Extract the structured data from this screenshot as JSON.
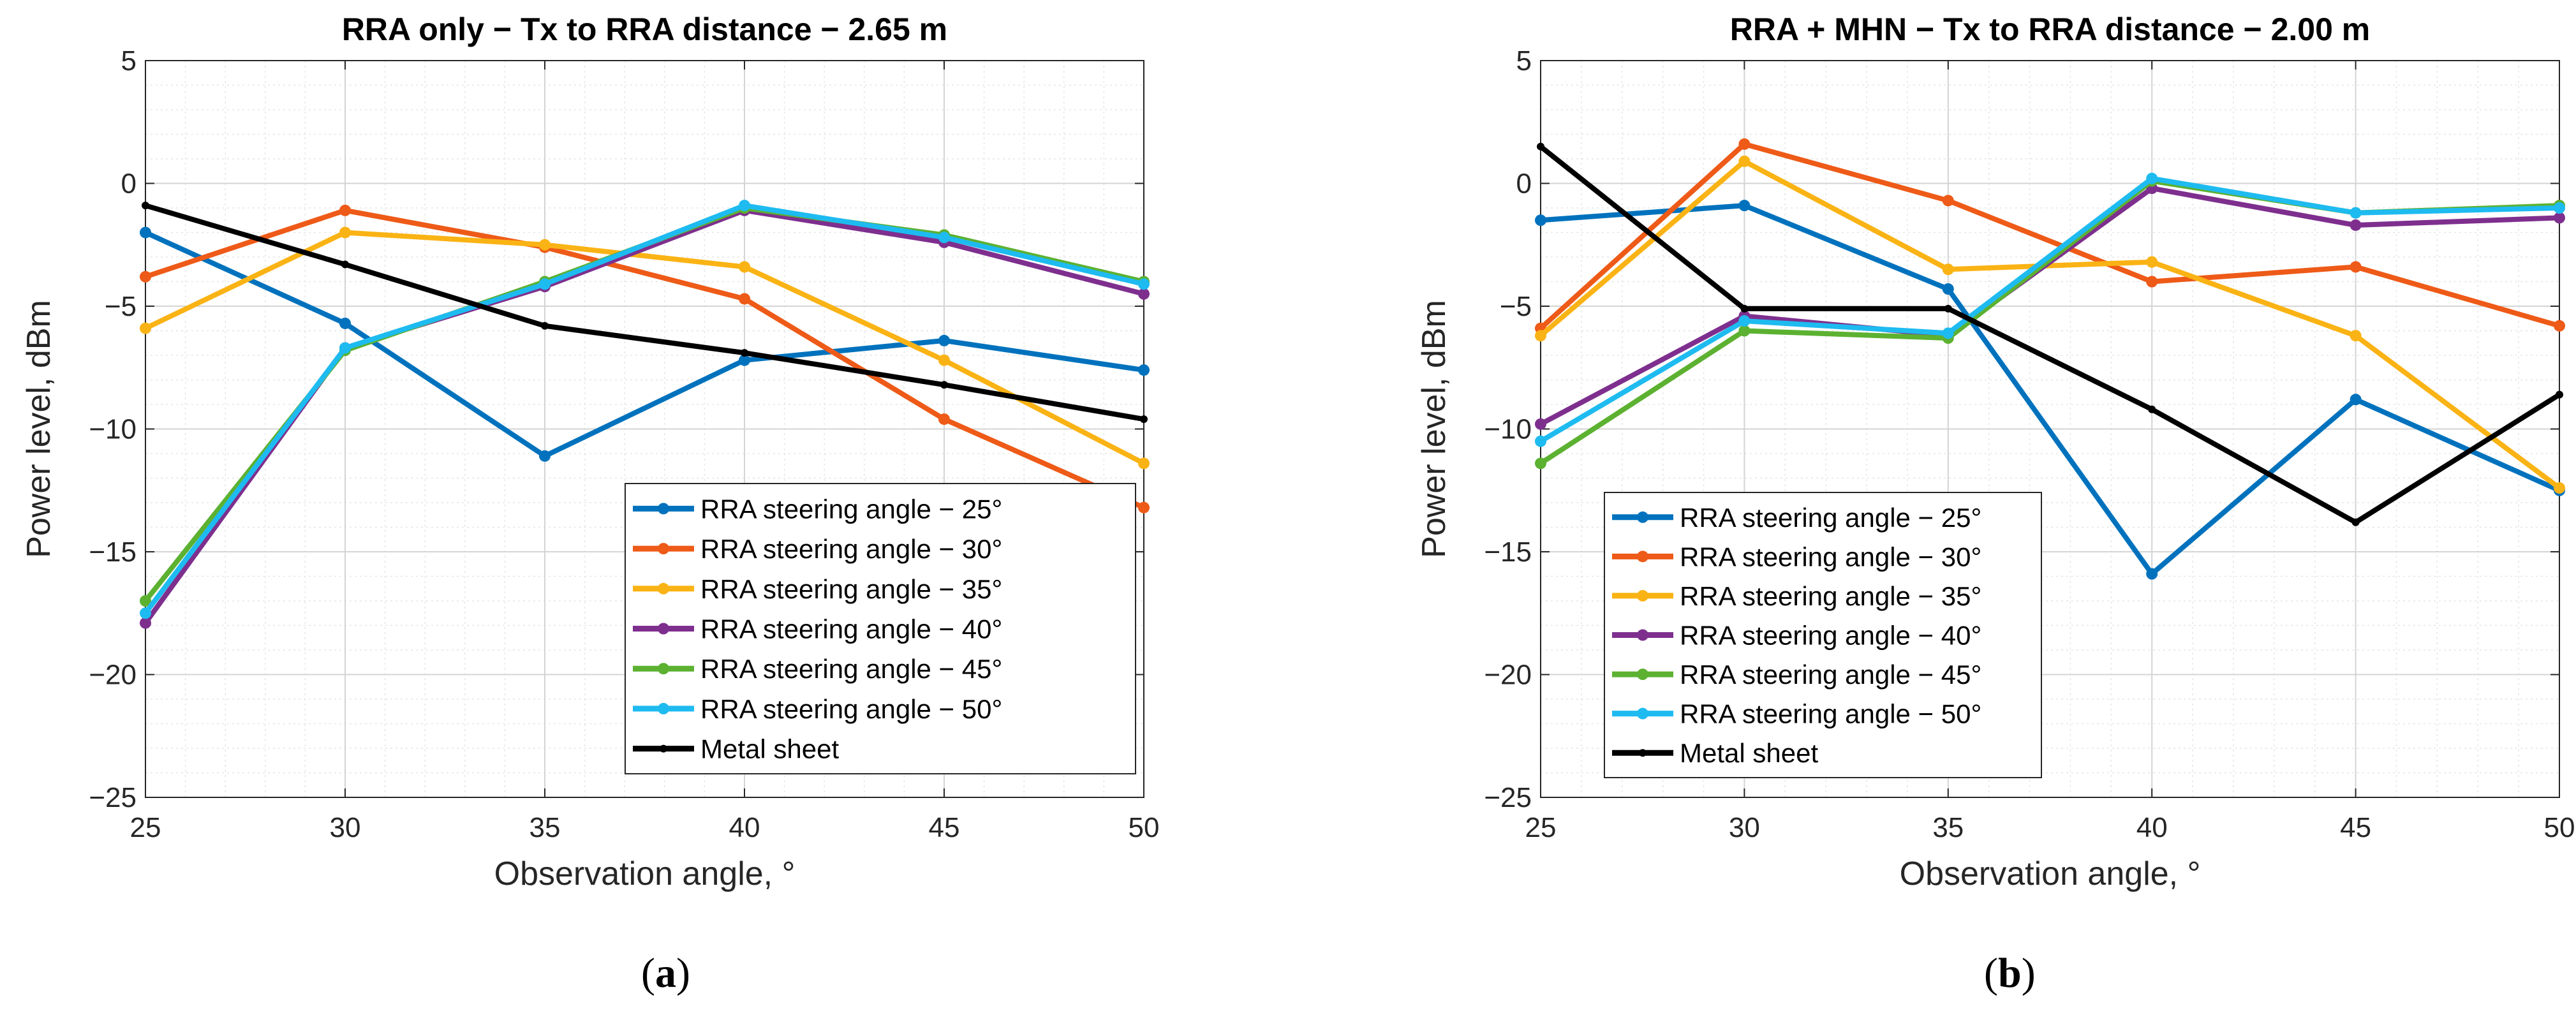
{
  "chart_data": [
    {
      "type": "line",
      "panel_label": "a",
      "title": "RRA only − Tx to RRA distance − 2.65 m",
      "xlabel": "Observation angle, °",
      "ylabel": "Power level, dBm",
      "xlim": [
        25,
        50
      ],
      "ylim": [
        -25,
        5
      ],
      "xticks": [
        "25",
        "30",
        "35",
        "40",
        "45",
        "50"
      ],
      "yticks": [
        "5",
        "0",
        "−5",
        "−10",
        "−15",
        "−20",
        "−25"
      ],
      "grid": true,
      "legend_position": "bottom-right",
      "x": [
        25,
        30,
        35,
        40,
        45,
        50
      ],
      "series": [
        {
          "name": "RRA steering angle − 25°",
          "color": "#0072BD",
          "values": [
            -2.0,
            -5.7,
            -11.1,
            -7.2,
            -6.4,
            -7.6
          ]
        },
        {
          "name": "RRA steering angle − 30°",
          "color": "#EE5A17",
          "values": [
            -3.8,
            -1.1,
            -2.6,
            -4.7,
            -9.6,
            -13.2
          ]
        },
        {
          "name": "RRA steering angle − 35°",
          "color": "#FAB314",
          "values": [
            -5.9,
            -2.0,
            -2.5,
            -3.4,
            -7.2,
            -11.4
          ]
        },
        {
          "name": "RRA steering angle − 40°",
          "color": "#7E2F8E",
          "values": [
            -17.9,
            -6.7,
            -4.2,
            -1.1,
            -2.4,
            -4.5
          ]
        },
        {
          "name": "RRA steering angle − 45°",
          "color": "#5CB131",
          "values": [
            -17.0,
            -6.8,
            -4.0,
            -1.0,
            -2.1,
            -4.0
          ]
        },
        {
          "name": "RRA steering angle − 50°",
          "color": "#1EBBF0",
          "values": [
            -17.5,
            -6.7,
            -4.1,
            -0.9,
            -2.2,
            -4.1
          ]
        },
        {
          "name": "Metal sheet",
          "color": "#000000",
          "values": [
            -0.9,
            -3.3,
            -5.8,
            -6.9,
            -8.2,
            -9.6
          ]
        }
      ]
    },
    {
      "type": "line",
      "panel_label": "b",
      "title": "RRA + MHN − Tx to RRA distance − 2.00 m",
      "xlabel": "Observation angle, °",
      "ylabel": "Power level, dBm",
      "xlim": [
        25,
        50
      ],
      "ylim": [
        -25,
        5
      ],
      "xticks": [
        "25",
        "30",
        "35",
        "40",
        "45",
        "50"
      ],
      "yticks": [
        "5",
        "0",
        "−5",
        "−10",
        "−15",
        "−20",
        "−25"
      ],
      "grid": true,
      "legend_position": "bottom-left",
      "x": [
        25,
        30,
        35,
        40,
        45,
        50
      ],
      "series": [
        {
          "name": "RRA steering angle − 25°",
          "color": "#0072BD",
          "values": [
            -1.5,
            -0.9,
            -4.3,
            -15.9,
            -8.8,
            -12.5
          ]
        },
        {
          "name": "RRA steering angle − 30°",
          "color": "#EE5A17",
          "values": [
            -5.9,
            1.6,
            -0.7,
            -4.0,
            -3.4,
            -5.8
          ]
        },
        {
          "name": "RRA steering angle − 35°",
          "color": "#FAB314",
          "values": [
            -6.2,
            0.9,
            -3.5,
            -3.2,
            -6.2,
            -12.4
          ]
        },
        {
          "name": "RRA steering angle − 40°",
          "color": "#7E2F8E",
          "values": [
            -9.8,
            -5.4,
            -6.2,
            -0.2,
            -1.7,
            -1.4
          ]
        },
        {
          "name": "RRA steering angle − 45°",
          "color": "#5CB131",
          "values": [
            -11.4,
            -6.0,
            -6.3,
            0.1,
            -1.2,
            -0.9
          ]
        },
        {
          "name": "RRA steering angle − 50°",
          "color": "#1EBBF0",
          "values": [
            -10.5,
            -5.6,
            -6.1,
            0.2,
            -1.2,
            -1.0
          ]
        },
        {
          "name": "Metal sheet",
          "color": "#000000",
          "values": [
            1.5,
            -5.1,
            -5.1,
            -9.2,
            -13.8,
            -8.6
          ]
        }
      ]
    }
  ]
}
